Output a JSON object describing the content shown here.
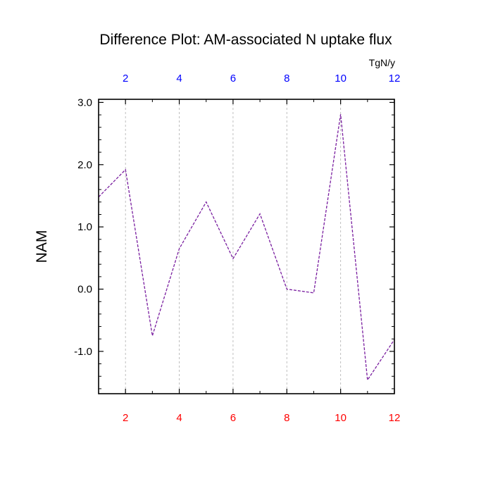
{
  "chart_data": {
    "type": "line",
    "title": "Difference Plot: AM-associated N uptake flux",
    "ylabel": "NAM",
    "units": "TgN/y",
    "x": [
      1,
      2,
      3,
      4,
      5,
      6,
      7,
      8,
      9,
      10,
      11,
      12
    ],
    "series": [
      {
        "values": [
          1.48,
          1.92,
          -0.75,
          0.65,
          1.4,
          0.49,
          1.21,
          0.0,
          -0.06,
          2.81,
          -1.46,
          -0.81
        ]
      }
    ],
    "xlim": [
      1,
      12
    ],
    "ylim": [
      -1.68,
      3.05
    ],
    "xticks": [
      2,
      4,
      6,
      8,
      10,
      12
    ],
    "xtick_labels": [
      "2",
      "4",
      "6",
      "8",
      "10",
      "12"
    ],
    "top_xtick_labels": [
      "2",
      "4",
      "6",
      "8",
      "10",
      "12"
    ],
    "yticks": [
      3.0,
      2.0,
      1.0,
      0.0,
      -1.0
    ],
    "ytick_labels": [
      "3.0",
      "2.0",
      "1.0",
      "0.0",
      "-1.0"
    ],
    "grid": "vertical dashed at x ticks",
    "line_color": "#7a1fa0",
    "bottom_axis_label_color": "#ff0000",
    "top_axis_label_color": "#0000ff"
  }
}
